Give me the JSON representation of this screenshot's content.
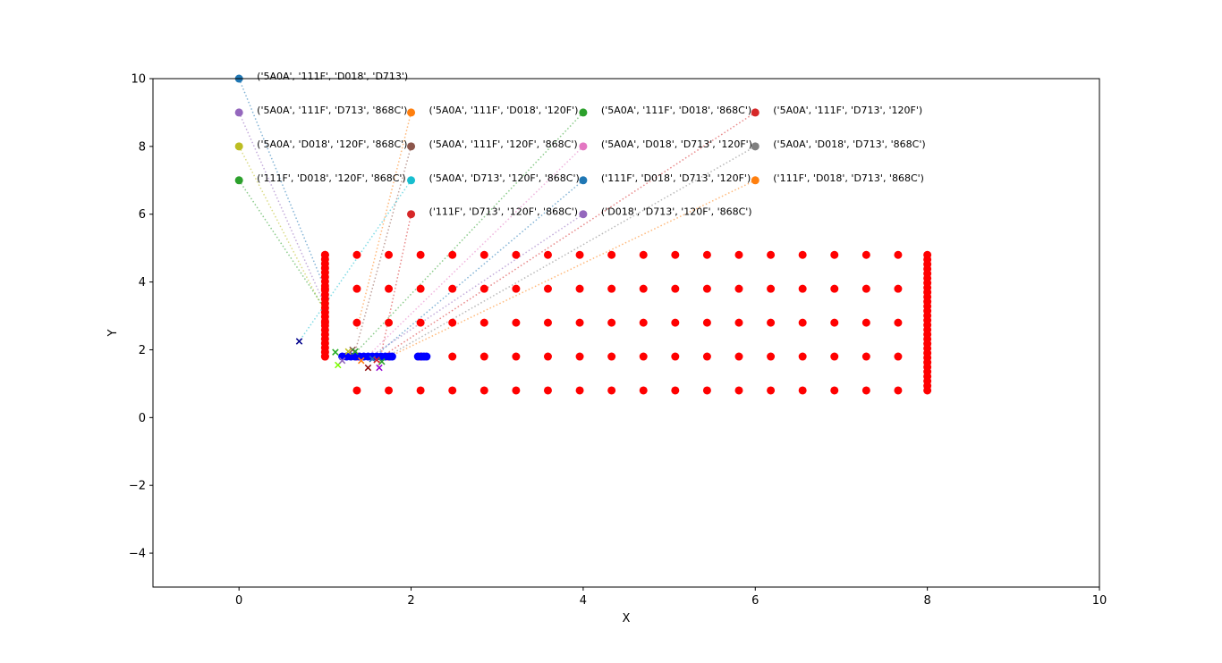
{
  "chart_data": {
    "type": "scatter",
    "xlabel": "X",
    "ylabel": "Y",
    "xlim": [
      -1,
      10
    ],
    "ylim": [
      -5,
      10
    ],
    "xticks": [
      0,
      2,
      4,
      6,
      8,
      10
    ],
    "yticks": [
      -4,
      -2,
      0,
      2,
      4,
      6,
      8,
      10
    ],
    "grid": false,
    "colors": {
      "grid_points": "#ff0000",
      "blue_points": "#0000ff",
      "c0": "#1f77b4",
      "c1": "#ff7f0e",
      "c2": "#2ca02c",
      "c3": "#d62728",
      "c4": "#9467bd",
      "c5": "#8c564b",
      "c6": "#e377c2",
      "c7": "#7f7f7f",
      "c8": "#bcbd22",
      "c9": "#17becf"
    },
    "grid_points": {
      "columns_x": [
        1.0,
        1.37,
        1.74,
        2.11,
        2.48,
        2.85,
        3.22,
        3.59,
        3.96,
        4.33,
        4.7,
        5.07,
        5.44,
        5.81,
        6.18,
        6.55,
        6.92,
        7.29,
        7.66
      ],
      "rows_y": [
        0.8,
        1.8,
        2.8,
        3.8,
        4.8
      ],
      "edge_columns": [
        {
          "x": 1.0,
          "y_from": 1.8,
          "y_to": 4.8,
          "count": 24
        },
        {
          "x": 8.0,
          "y_from": 0.8,
          "y_to": 4.8,
          "count": 30
        }
      ]
    },
    "blue_points": [
      [
        1.2,
        1.8
      ],
      [
        1.25,
        1.8
      ],
      [
        1.3,
        1.8
      ],
      [
        1.35,
        1.8
      ],
      [
        1.4,
        1.8
      ],
      [
        1.45,
        1.8
      ],
      [
        1.5,
        1.8
      ],
      [
        1.55,
        1.8
      ],
      [
        1.6,
        1.8
      ],
      [
        1.65,
        1.8
      ],
      [
        1.7,
        1.8
      ],
      [
        1.75,
        1.8
      ],
      [
        1.78,
        1.8
      ],
      [
        2.08,
        1.8
      ],
      [
        2.12,
        1.8
      ],
      [
        2.15,
        1.8
      ],
      [
        2.18,
        1.8
      ]
    ],
    "cross_markers": [
      {
        "x": 0.7,
        "y": 2.25,
        "color": "#00008b"
      },
      {
        "x": 1.12,
        "y": 1.93,
        "color": "#22aa22"
      },
      {
        "x": 1.15,
        "y": 1.55,
        "color": "#7cfc00"
      },
      {
        "x": 1.2,
        "y": 1.68,
        "color": "#9467bd"
      },
      {
        "x": 1.27,
        "y": 1.95,
        "color": "#bcbd22"
      },
      {
        "x": 1.32,
        "y": 2.0,
        "color": "#8c564b"
      },
      {
        "x": 1.35,
        "y": 1.95,
        "color": "#2ca02c"
      },
      {
        "x": 1.42,
        "y": 1.68,
        "color": "#ff7f0e"
      },
      {
        "x": 1.5,
        "y": 1.47,
        "color": "#8b0000"
      },
      {
        "x": 1.55,
        "y": 1.73,
        "color": "#1f77b4"
      },
      {
        "x": 1.6,
        "y": 1.7,
        "color": "#d62728"
      },
      {
        "x": 1.63,
        "y": 1.47,
        "color": "#9400d3"
      },
      {
        "x": 1.66,
        "y": 1.65,
        "color": "#2ca02c"
      }
    ],
    "labeled_points": [
      {
        "x": 0,
        "y": 10,
        "color": "#1f77b4",
        "label": "('5A0A', '111F', 'D018', 'D713')",
        "target": [
          1.0,
          3.8
        ]
      },
      {
        "x": 0,
        "y": 9,
        "color": "#9467bd",
        "label": "('5A0A', '111F', 'D713', '868C')",
        "target": [
          1.0,
          3.3
        ]
      },
      {
        "x": 0,
        "y": 8,
        "color": "#bcbd22",
        "label": "('5A0A', 'D018', '120F', '868C')",
        "target": [
          1.0,
          3.1
        ]
      },
      {
        "x": 0,
        "y": 7,
        "color": "#2ca02c",
        "label": "('111F', 'D018', '120F', '868C')",
        "target": [
          1.0,
          3.2
        ]
      },
      {
        "x": 2,
        "y": 9,
        "color": "#ff7f0e",
        "label": "('5A0A', '111F', 'D018', '120F')",
        "target": [
          1.37,
          2.6
        ]
      },
      {
        "x": 2,
        "y": 8,
        "color": "#8c564b",
        "label": "('5A0A', '111F', '120F', '868C')",
        "target": [
          1.35,
          1.95
        ]
      },
      {
        "x": 2,
        "y": 7,
        "color": "#17becf",
        "label": "('5A0A', 'D713', '120F', '868C')",
        "target": [
          0.7,
          2.25
        ]
      },
      {
        "x": 2,
        "y": 6,
        "color": "#d62728",
        "label": "('111F', 'D713', '120F', '868C')",
        "target": [
          1.62,
          1.5
        ]
      },
      {
        "x": 4,
        "y": 9,
        "color": "#2ca02c",
        "label": "('5A0A', '111F', 'D018', '868C')",
        "target": [
          1.35,
          1.9
        ]
      },
      {
        "x": 4,
        "y": 8,
        "color": "#e377c2",
        "label": "('5A0A', 'D018', 'D713', '120F')",
        "target": [
          1.45,
          1.7
        ]
      },
      {
        "x": 4,
        "y": 7,
        "color": "#1f77b4",
        "label": "('111F', 'D018', 'D713', '120F')",
        "target": [
          1.55,
          1.75
        ]
      },
      {
        "x": 4,
        "y": 6,
        "color": "#9467bd",
        "label": "('D018', 'D713', '120F', '868C')",
        "target": [
          1.5,
          1.75
        ]
      },
      {
        "x": 6,
        "y": 9,
        "color": "#d62728",
        "label": "('5A0A', '111F', 'D713', '120F')",
        "target": [
          1.6,
          1.7
        ]
      },
      {
        "x": 6,
        "y": 8,
        "color": "#7f7f7f",
        "label": "('5A0A', 'D018', 'D713', '868C')",
        "target": [
          1.65,
          1.7
        ]
      },
      {
        "x": 6,
        "y": 7,
        "color": "#ff7f0e",
        "label": "('111F', 'D018', 'D713', '868C')",
        "target": [
          1.75,
          1.8
        ]
      }
    ]
  }
}
